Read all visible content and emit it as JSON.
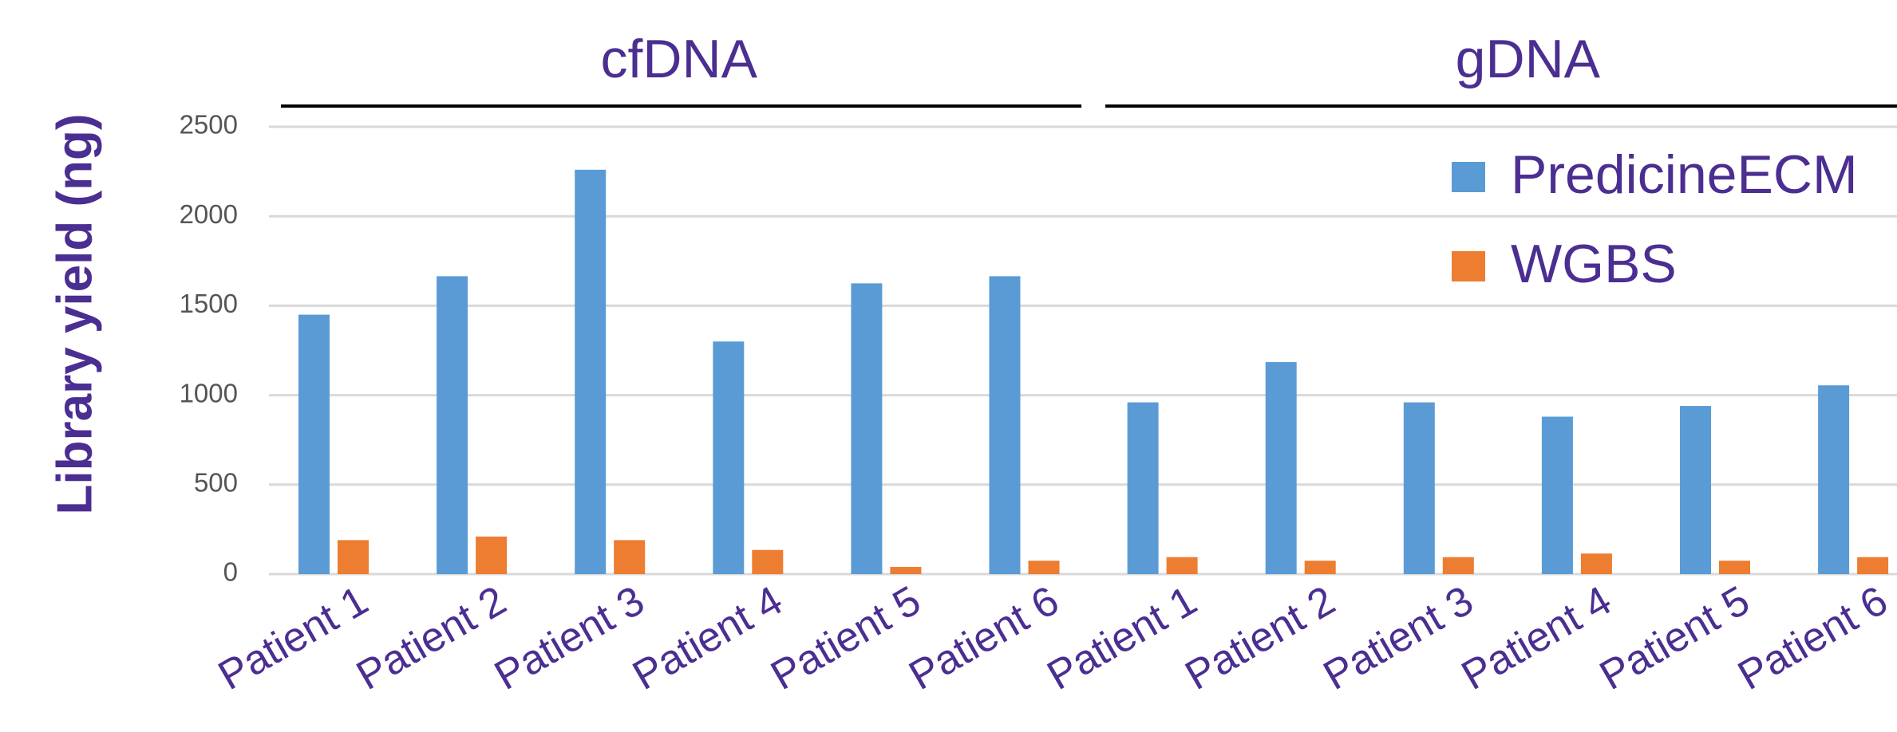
{
  "chart_data": {
    "type": "bar",
    "y_label": "Library yield (ng)",
    "groups": [
      "cfDNA",
      "gDNA"
    ],
    "categories": [
      "Patient 1",
      "Patient 2",
      "Patient 3",
      "Patient 4",
      "Patient 5",
      "Patient 6",
      "Patient 1",
      "Patient 2",
      "Patient 3",
      "Patient 4",
      "Patient 5",
      "Patient 6"
    ],
    "series": [
      {
        "name": "PredicineECM",
        "color": "#5b9bd5",
        "values": [
          1450,
          1665,
          2260,
          1300,
          1625,
          1665,
          960,
          1185,
          960,
          880,
          940,
          1055
        ]
      },
      {
        "name": "WGBS",
        "color": "#ed7d31",
        "values": [
          190,
          210,
          190,
          135,
          40,
          75,
          95,
          75,
          95,
          115,
          75,
          95
        ]
      }
    ],
    "ylim": [
      0,
      2500
    ],
    "yticks": [
      0,
      500,
      1000,
      1500,
      2000,
      2500
    ],
    "grid": true
  }
}
